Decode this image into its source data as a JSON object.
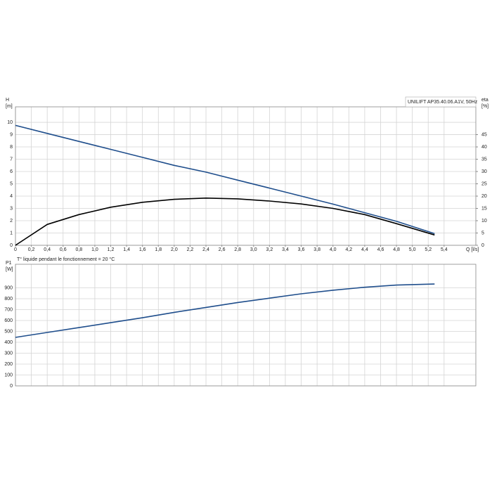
{
  "chart_data": [
    {
      "type": "line",
      "title": "UNILIFT AP35.40.06.A1V, 50Hz",
      "ylabel": [
        "H",
        "[m]"
      ],
      "y2label": [
        "eta",
        "[%]"
      ],
      "xlabel": "Q [l/s]",
      "xlim": [
        0,
        5.8
      ],
      "ylim": [
        0,
        11.26
      ],
      "y2lim": [
        0,
        56.3
      ],
      "xticks": [
        0,
        {
          "value": 0.2,
          "label": "0,2"
        },
        {
          "value": 0.4,
          "label": "0,4"
        },
        {
          "value": 0.6,
          "label": "0,6"
        },
        {
          "value": 0.8,
          "label": "0,8"
        },
        {
          "value": 1.0,
          "label": "1,0"
        },
        {
          "value": 1.2,
          "label": "1,2"
        },
        {
          "value": 1.4,
          "label": "1,4"
        },
        {
          "value": 1.6,
          "label": "1,6"
        },
        {
          "value": 1.8,
          "label": "1,8"
        },
        {
          "value": 2.0,
          "label": "2,0"
        },
        {
          "value": 2.2,
          "label": "2,2"
        },
        {
          "value": 2.4,
          "label": "2,4"
        },
        {
          "value": 2.6,
          "label": "2,6"
        },
        {
          "value": 2.8,
          "label": "2,8"
        },
        {
          "value": 3.0,
          "label": "3,0"
        },
        {
          "value": 3.2,
          "label": "3,2"
        },
        {
          "value": 3.4,
          "label": "3,4"
        },
        {
          "value": 3.6,
          "label": "3,6"
        },
        {
          "value": 3.8,
          "label": "3,8"
        },
        {
          "value": 4.0,
          "label": "4,0"
        },
        {
          "value": 4.2,
          "label": "4,2"
        },
        {
          "value": 4.4,
          "label": "4,4"
        },
        {
          "value": 4.6,
          "label": "4,6"
        },
        {
          "value": 4.8,
          "label": "4,8"
        },
        {
          "value": 5.0,
          "label": "5,0"
        },
        {
          "value": 5.2,
          "label": "5,2"
        },
        {
          "value": 5.4,
          "label": "5,4"
        }
      ],
      "yticks": [
        0,
        1,
        2,
        3,
        4,
        5,
        6,
        7,
        8,
        9,
        10
      ],
      "y2ticks": [
        0,
        5,
        10,
        15,
        20,
        25,
        30,
        35,
        40,
        45
      ],
      "grid": true,
      "x": [
        0,
        0.4,
        0.8,
        1.2,
        1.6,
        2.0,
        2.4,
        2.8,
        3.2,
        3.6,
        4.0,
        4.4,
        4.8,
        5.28
      ],
      "series": [
        {
          "name": "H",
          "color": "#1f4e8c",
          "axis": "y",
          "values": [
            9.75,
            9.1,
            8.45,
            7.8,
            7.15,
            6.5,
            5.95,
            5.3,
            4.65,
            4.0,
            3.35,
            2.65,
            1.95,
            0.95
          ]
        },
        {
          "name": "eta",
          "color": "#000000",
          "axis": "y2",
          "values": [
            0,
            8.5,
            12.5,
            15.5,
            17.5,
            18.7,
            19.2,
            18.9,
            18.0,
            16.8,
            15.0,
            12.5,
            8.8,
            4.2
          ]
        }
      ]
    },
    {
      "type": "line",
      "title": "T° liquide pendant le fonctionnement = 20 °C",
      "ylabel": [
        "P1",
        "[W]"
      ],
      "xlim": [
        0,
        5.8
      ],
      "ylim": [
        0,
        1116
      ],
      "yticks": [
        0,
        100,
        200,
        300,
        400,
        500,
        600,
        700,
        800,
        900
      ],
      "grid": true,
      "x": [
        0,
        0.4,
        0.8,
        1.2,
        1.6,
        2.0,
        2.4,
        2.8,
        3.2,
        3.6,
        4.0,
        4.4,
        4.8,
        5.28
      ],
      "series": [
        {
          "name": "P1",
          "color": "#1f4e8c",
          "axis": "y",
          "values": [
            445,
            490,
            535,
            580,
            625,
            675,
            720,
            765,
            805,
            845,
            878,
            905,
            925,
            935
          ]
        }
      ]
    }
  ]
}
